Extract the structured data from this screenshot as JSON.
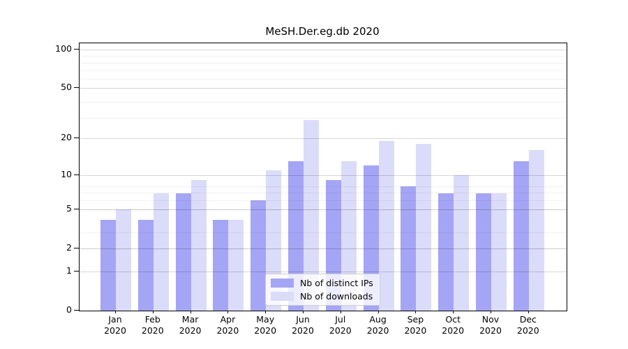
{
  "title": "MeSH.Der.eg.db 2020",
  "chart_data": {
    "type": "bar",
    "title": "MeSH.Der.eg.db 2020",
    "categories": [
      "Jan",
      "Feb",
      "Mar",
      "Apr",
      "May",
      "Jun",
      "Jul",
      "Aug",
      "Sep",
      "Oct",
      "Nov",
      "Dec"
    ],
    "year": "2020",
    "series": [
      {
        "name": "Nb of distinct IPs",
        "color": "#a5a5f5",
        "values": [
          4,
          4,
          7,
          4,
          6,
          13,
          9,
          12,
          8,
          7,
          7,
          13
        ]
      },
      {
        "name": "Nb of downloads",
        "color": "#dbdbfa",
        "values": [
          5,
          7,
          9,
          4,
          11,
          28,
          13,
          19,
          18,
          10,
          7,
          16
        ]
      }
    ],
    "xlabel": "",
    "ylabel": "",
    "y_scale": "log(value+1)",
    "y_ticks": [
      0,
      1,
      2,
      5,
      10,
      20,
      50,
      100
    ],
    "y_minor_gridlines": [
      2,
      3,
      5,
      6,
      7,
      8,
      29,
      39,
      59,
      69,
      79,
      89
    ],
    "ylim": [
      0,
      112
    ],
    "grid": true,
    "gridlines_above_bars": true,
    "legend_position": "lower center",
    "colors": {
      "background": "#ffffff",
      "spine": "#000000",
      "text": "#000000",
      "grid_major": "#cccccc",
      "grid_minor": "#ededed",
      "legend_border": "#cccccc"
    }
  }
}
